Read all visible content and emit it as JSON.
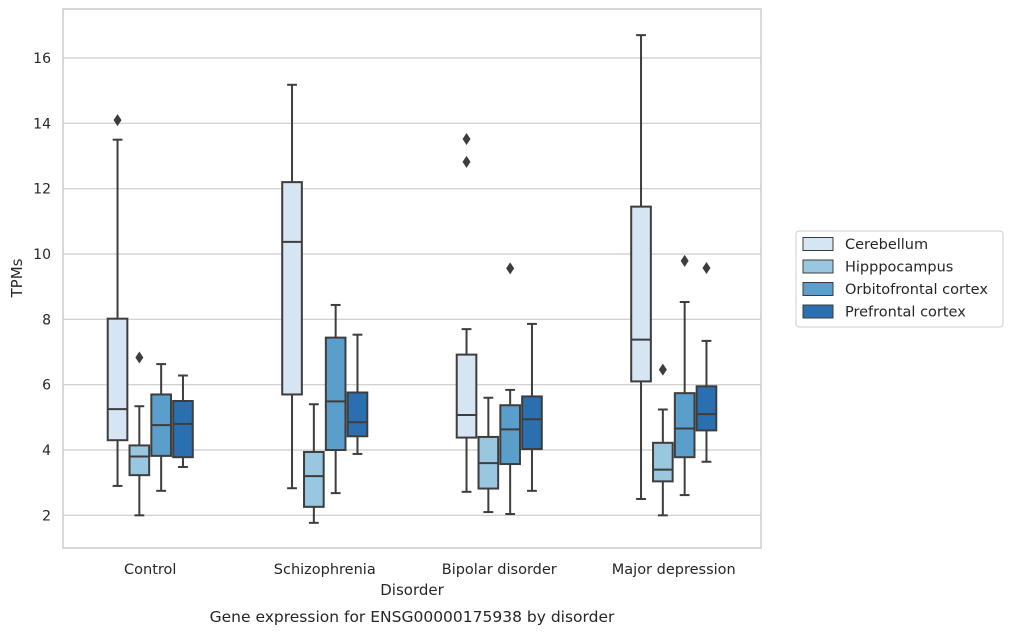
{
  "chart_data": {
    "type": "boxplot",
    "caption": "Gene expression for ENSG00000175938 by disorder",
    "xlabel": "Disorder",
    "ylabel": "TPMs",
    "ylim": [
      1.0,
      17.5
    ],
    "yticks": [
      2,
      4,
      6,
      8,
      10,
      12,
      14,
      16
    ],
    "grid": true,
    "legend_position": "right",
    "categories": [
      "Control",
      "Schizophrenia",
      "Bipolar disorder",
      "Major depression"
    ],
    "series": [
      {
        "name": "Cerebellum",
        "color": "#d6e5f4",
        "boxes": [
          {
            "whislo": 2.9,
            "q1": 4.3,
            "med": 5.25,
            "q3": 8.02,
            "whishi": 13.5,
            "fliers": [
              14.1
            ]
          },
          {
            "whislo": 2.83,
            "q1": 5.7,
            "med": 10.37,
            "q3": 12.2,
            "whishi": 15.18,
            "fliers": []
          },
          {
            "whislo": 2.72,
            "q1": 4.38,
            "med": 5.07,
            "q3": 6.92,
            "whishi": 7.7,
            "fliers": [
              12.82,
              13.52
            ]
          },
          {
            "whislo": 2.5,
            "q1": 6.1,
            "med": 7.38,
            "q3": 11.45,
            "whishi": 16.7,
            "fliers": []
          }
        ]
      },
      {
        "name": "Hipppocampus",
        "color": "#9ac7e0",
        "boxes": [
          {
            "whislo": 2.0,
            "q1": 3.23,
            "med": 3.8,
            "q3": 4.14,
            "whishi": 5.34,
            "fliers": [
              6.83
            ]
          },
          {
            "whislo": 1.77,
            "q1": 2.26,
            "med": 3.2,
            "q3": 3.94,
            "whishi": 5.4,
            "fliers": []
          },
          {
            "whislo": 2.1,
            "q1": 2.82,
            "med": 3.6,
            "q3": 4.4,
            "whishi": 5.6,
            "fliers": []
          },
          {
            "whislo": 2.0,
            "q1": 3.04,
            "med": 3.4,
            "q3": 4.22,
            "whishi": 5.24,
            "fliers": [
              6.46
            ]
          }
        ]
      },
      {
        "name": "Orbitofrontal cortex",
        "color": "#5a9fcc",
        "boxes": [
          {
            "whislo": 2.75,
            "q1": 3.82,
            "med": 4.76,
            "q3": 5.7,
            "whishi": 6.63,
            "fliers": []
          },
          {
            "whislo": 2.68,
            "q1": 4.0,
            "med": 5.49,
            "q3": 7.44,
            "whishi": 8.44,
            "fliers": []
          },
          {
            "whislo": 2.04,
            "q1": 3.57,
            "med": 4.63,
            "q3": 5.37,
            "whishi": 5.84,
            "fliers": [
              9.56
            ]
          },
          {
            "whislo": 2.62,
            "q1": 3.78,
            "med": 4.66,
            "q3": 5.74,
            "whishi": 8.53,
            "fliers": [
              9.79
            ]
          }
        ]
      },
      {
        "name": "Prefrontal cortex",
        "color": "#2a70b0",
        "boxes": [
          {
            "whislo": 3.48,
            "q1": 3.78,
            "med": 4.8,
            "q3": 5.5,
            "whishi": 6.28,
            "fliers": []
          },
          {
            "whislo": 3.88,
            "q1": 4.42,
            "med": 4.85,
            "q3": 5.76,
            "whishi": 7.53,
            "fliers": []
          },
          {
            "whislo": 2.75,
            "q1": 4.03,
            "med": 4.94,
            "q3": 5.64,
            "whishi": 7.86,
            "fliers": []
          },
          {
            "whislo": 3.64,
            "q1": 4.6,
            "med": 5.1,
            "q3": 5.95,
            "whishi": 7.34,
            "fliers": [
              9.57
            ]
          }
        ]
      }
    ]
  }
}
